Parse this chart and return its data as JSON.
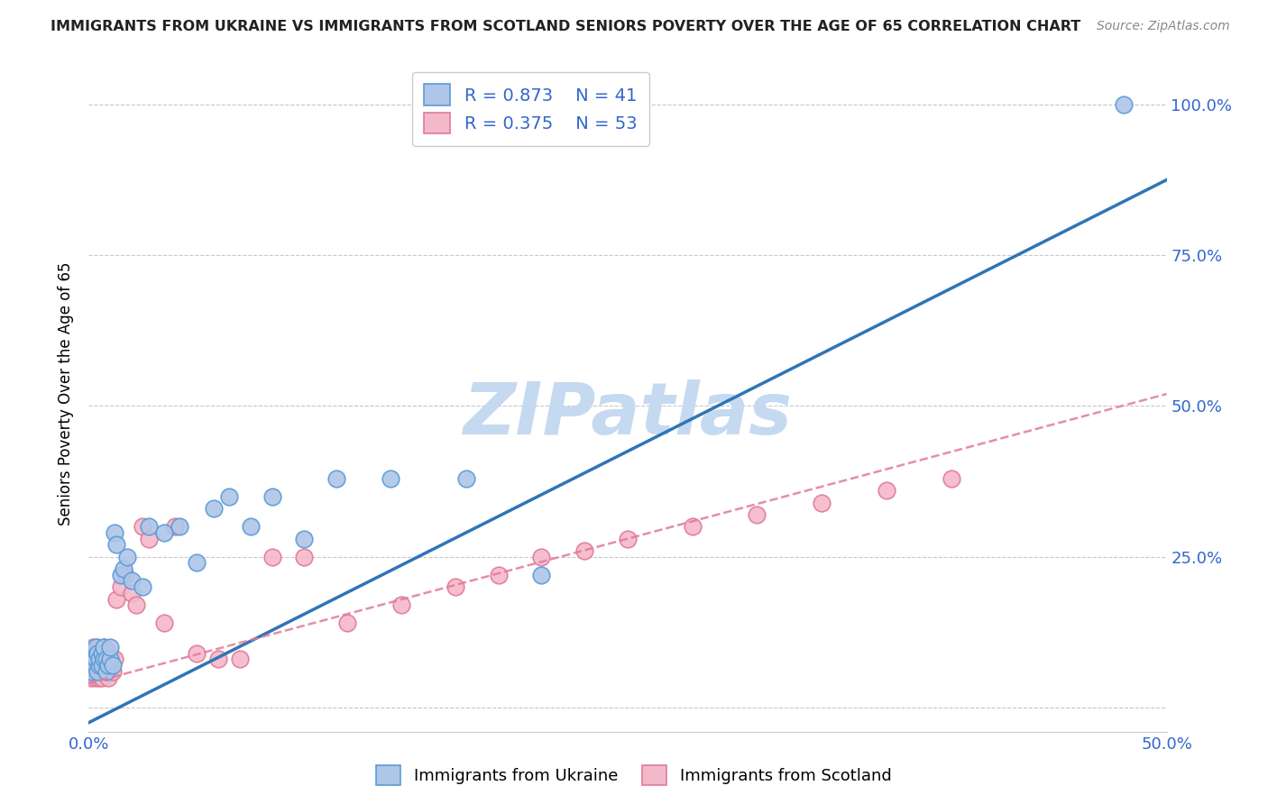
{
  "title": "IMMIGRANTS FROM UKRAINE VS IMMIGRANTS FROM SCOTLAND SENIORS POVERTY OVER THE AGE OF 65 CORRELATION CHART",
  "source": "Source: ZipAtlas.com",
  "ylabel": "Seniors Poverty Over the Age of 65",
  "xlim": [
    0.0,
    0.5
  ],
  "ylim": [
    -0.04,
    1.08
  ],
  "ytick_positions": [
    0.0,
    0.25,
    0.5,
    0.75,
    1.0
  ],
  "ytick_labels": [
    "",
    "25.0%",
    "50.0%",
    "75.0%",
    "100.0%"
  ],
  "ukraine_color": "#aec6e8",
  "ukraine_edge": "#5b9bd5",
  "scotland_color": "#f4b8cb",
  "scotland_edge": "#e07a99",
  "ukraine_R": 0.873,
  "ukraine_N": 41,
  "scotland_R": 0.375,
  "scotland_N": 53,
  "ukraine_line_color": "#2e75b6",
  "scotland_line_color": "#e07a99",
  "watermark": "ZIPatlas",
  "watermark_color": "#c5d9f1",
  "ukraine_line_x0": 0.0,
  "ukraine_line_y0": -0.025,
  "ukraine_line_x1": 0.5,
  "ukraine_line_y1": 0.875,
  "scotland_line_x0": 0.0,
  "scotland_line_y0": 0.04,
  "scotland_line_x1": 0.5,
  "scotland_line_y1": 0.52,
  "ukraine_scatter_x": [
    0.001,
    0.002,
    0.002,
    0.003,
    0.003,
    0.003,
    0.004,
    0.004,
    0.005,
    0.005,
    0.006,
    0.006,
    0.007,
    0.007,
    0.008,
    0.008,
    0.009,
    0.01,
    0.01,
    0.011,
    0.012,
    0.013,
    0.015,
    0.016,
    0.018,
    0.02,
    0.025,
    0.028,
    0.035,
    0.042,
    0.05,
    0.058,
    0.065,
    0.075,
    0.085,
    0.1,
    0.115,
    0.14,
    0.175,
    0.21,
    0.48
  ],
  "ukraine_scatter_y": [
    0.06,
    0.08,
    0.09,
    0.07,
    0.08,
    0.1,
    0.06,
    0.09,
    0.07,
    0.08,
    0.07,
    0.09,
    0.08,
    0.1,
    0.06,
    0.08,
    0.07,
    0.08,
    0.1,
    0.07,
    0.29,
    0.27,
    0.22,
    0.23,
    0.25,
    0.21,
    0.2,
    0.3,
    0.29,
    0.3,
    0.24,
    0.33,
    0.35,
    0.3,
    0.35,
    0.28,
    0.38,
    0.38,
    0.38,
    0.22,
    1.0
  ],
  "scotland_scatter_x": [
    0.001,
    0.001,
    0.002,
    0.002,
    0.002,
    0.003,
    0.003,
    0.003,
    0.004,
    0.004,
    0.004,
    0.005,
    0.005,
    0.005,
    0.006,
    0.006,
    0.006,
    0.007,
    0.007,
    0.007,
    0.008,
    0.008,
    0.009,
    0.009,
    0.01,
    0.011,
    0.012,
    0.013,
    0.015,
    0.017,
    0.02,
    0.022,
    0.025,
    0.028,
    0.035,
    0.04,
    0.05,
    0.06,
    0.07,
    0.085,
    0.1,
    0.12,
    0.145,
    0.17,
    0.19,
    0.21,
    0.23,
    0.25,
    0.28,
    0.31,
    0.34,
    0.37,
    0.4
  ],
  "scotland_scatter_y": [
    0.05,
    0.07,
    0.06,
    0.08,
    0.1,
    0.05,
    0.07,
    0.09,
    0.06,
    0.08,
    0.1,
    0.05,
    0.07,
    0.09,
    0.05,
    0.07,
    0.09,
    0.06,
    0.08,
    0.1,
    0.06,
    0.08,
    0.05,
    0.07,
    0.09,
    0.06,
    0.08,
    0.18,
    0.2,
    0.22,
    0.19,
    0.17,
    0.3,
    0.28,
    0.14,
    0.3,
    0.09,
    0.08,
    0.08,
    0.25,
    0.25,
    0.14,
    0.17,
    0.2,
    0.22,
    0.25,
    0.26,
    0.28,
    0.3,
    0.32,
    0.34,
    0.36,
    0.38
  ]
}
